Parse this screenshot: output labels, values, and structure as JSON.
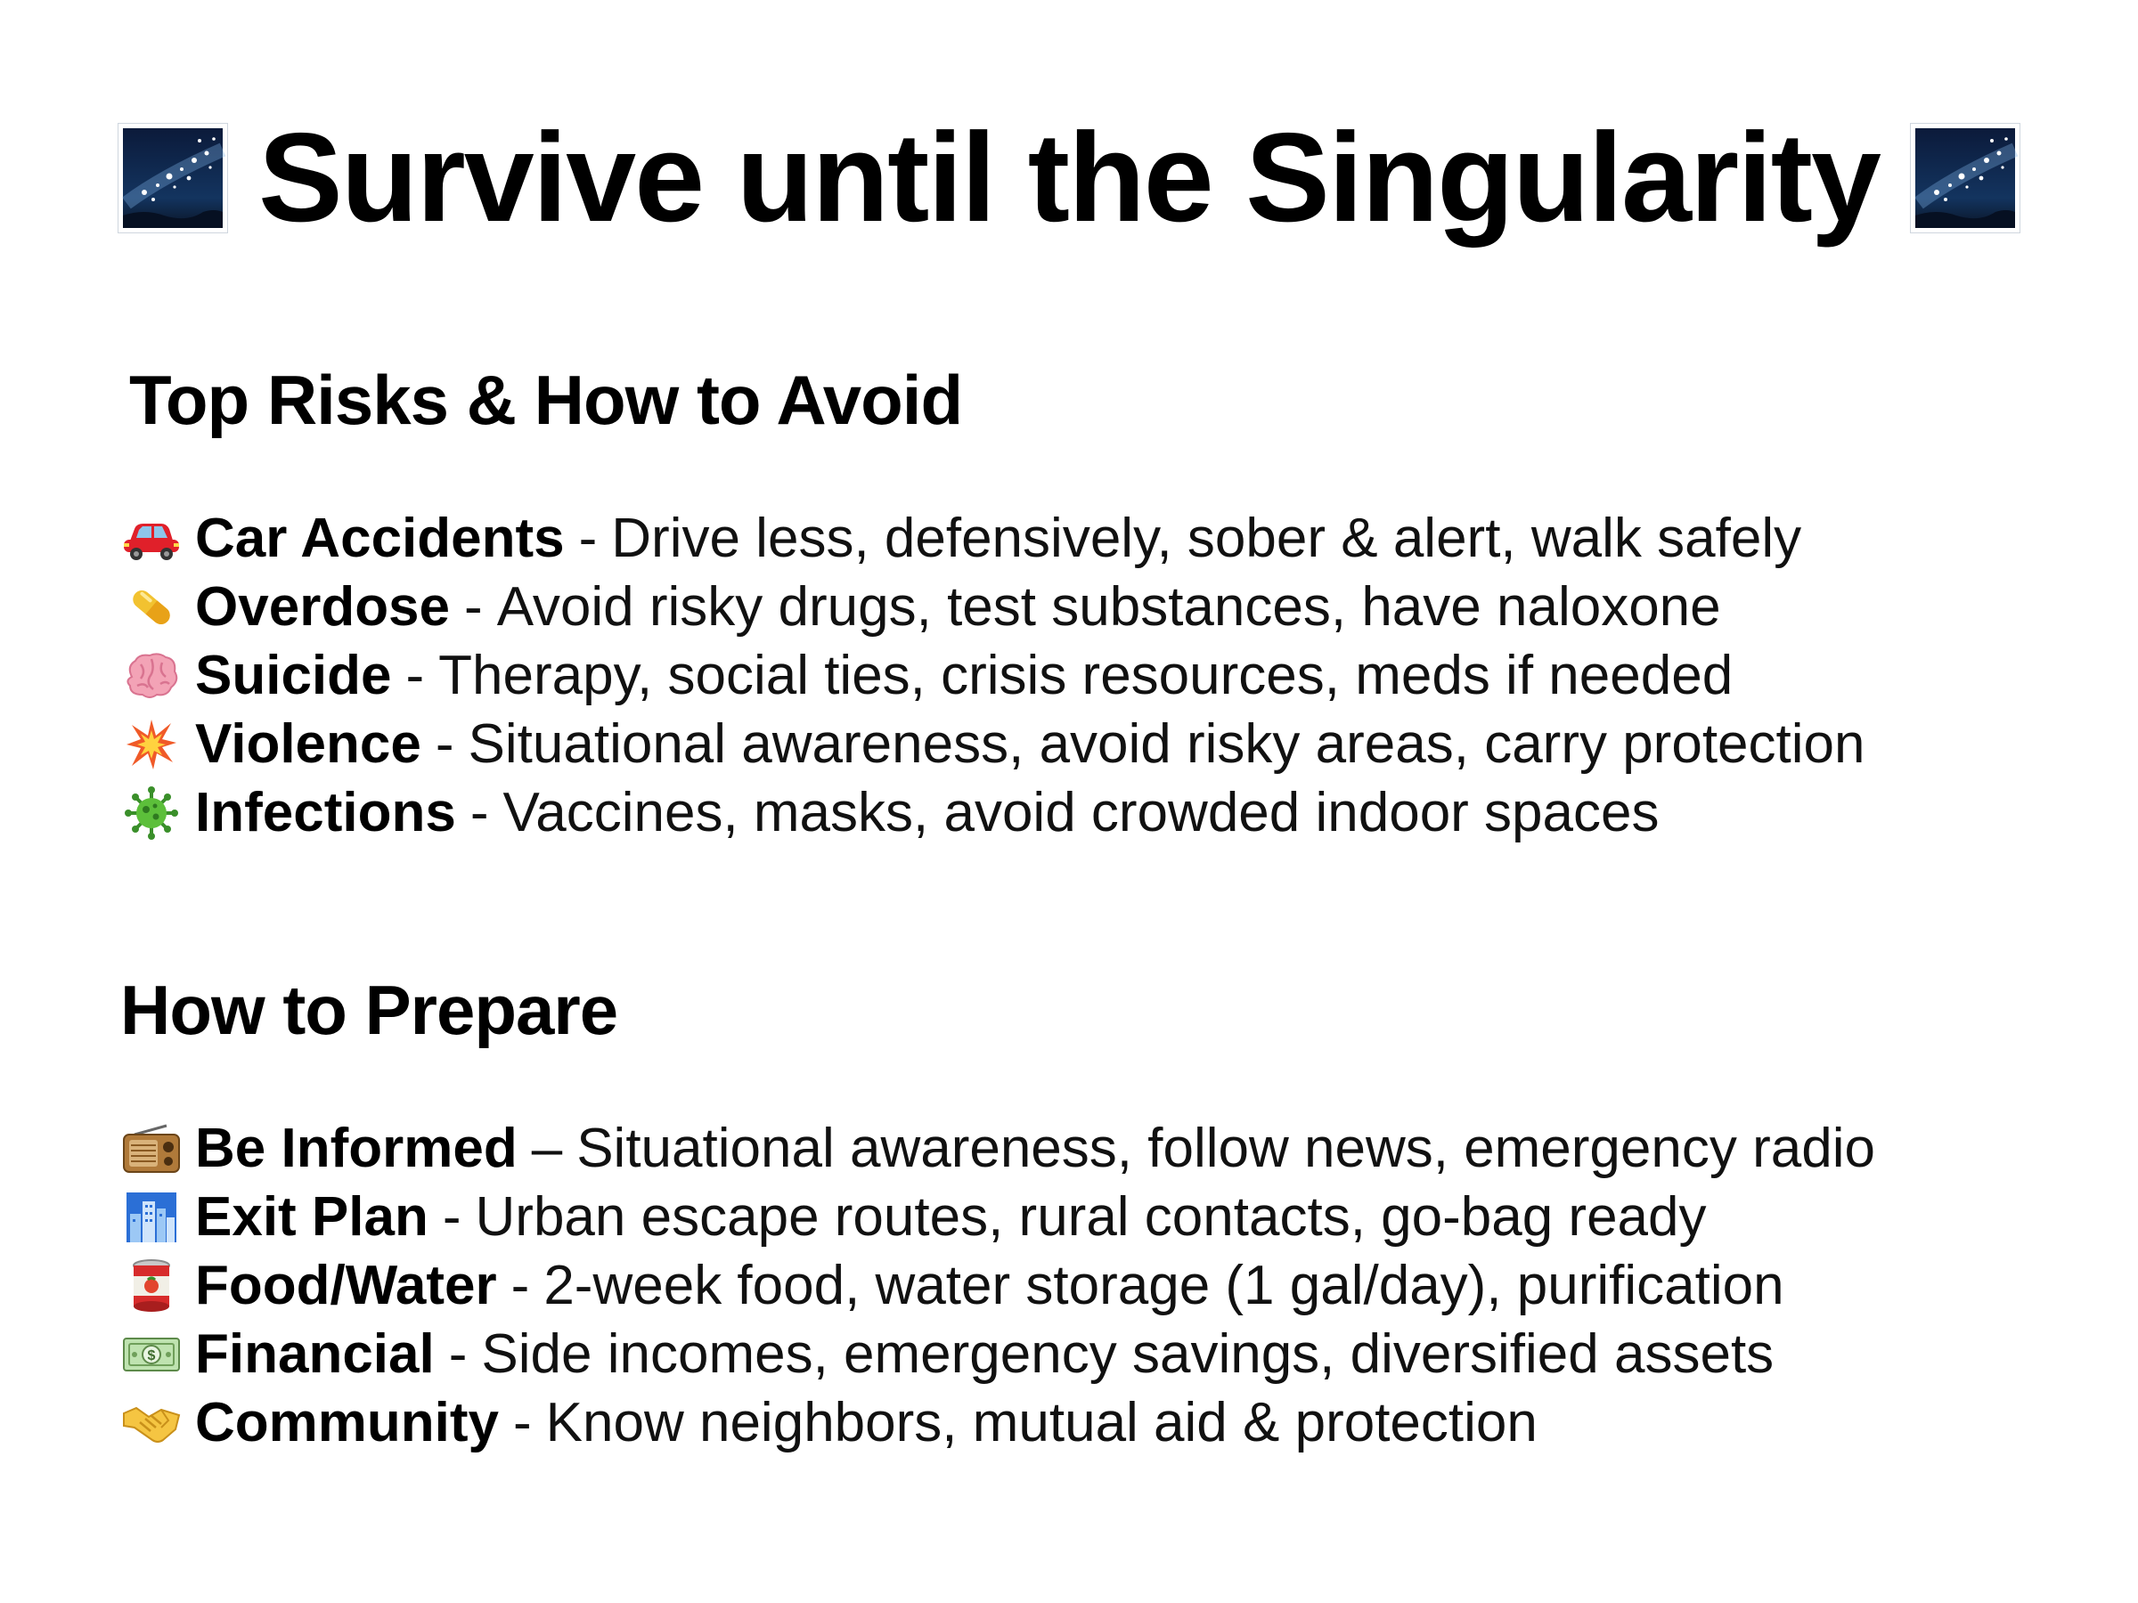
{
  "title": "Survive until the Singularity",
  "title_icon": "milky-way-night-sky-icon",
  "risks": {
    "heading": "Top Risks & How to Avoid",
    "items": [
      {
        "icon": "car-icon",
        "label": "Car Accidents",
        "sep": "-",
        "desc": "Drive less, defensively, sober & alert, walk safely"
      },
      {
        "icon": "pill-icon",
        "label": "Overdose",
        "sep": "-",
        "desc": "Avoid risky drugs, test substances, have naloxone"
      },
      {
        "icon": "brain-icon",
        "label": "Suicide",
        "sep": "-",
        "desc": "Therapy, social ties, crisis resources, meds if needed"
      },
      {
        "icon": "collision-icon",
        "label": "Violence",
        "sep": "-",
        "desc": "Situational awareness, avoid risky areas, carry protection"
      },
      {
        "icon": "microbe-icon",
        "label": "Infections",
        "sep": "-",
        "desc": "Vaccines, masks, avoid crowded indoor spaces"
      }
    ]
  },
  "prepare": {
    "heading": "How to Prepare",
    "items": [
      {
        "icon": "radio-icon",
        "label": "Be Informed",
        "sep": "–",
        "desc": "Situational awareness, follow news, emergency radio"
      },
      {
        "icon": "cityscape-icon",
        "label": "Exit Plan",
        "sep": "-",
        "desc": "Urban escape routes, rural contacts, go-bag ready"
      },
      {
        "icon": "canned-food-icon",
        "label": "Food/Water",
        "sep": "-",
        "desc": "2-week food, water storage (1 gal/day), purification"
      },
      {
        "icon": "dollar-banknote-icon",
        "label": "Financial",
        "sep": "-",
        "desc": "Side incomes, emergency savings, diversified assets"
      },
      {
        "icon": "handshake-icon",
        "label": "Community",
        "sep": "-",
        "desc": "Know neighbors, mutual aid & protection"
      }
    ]
  }
}
